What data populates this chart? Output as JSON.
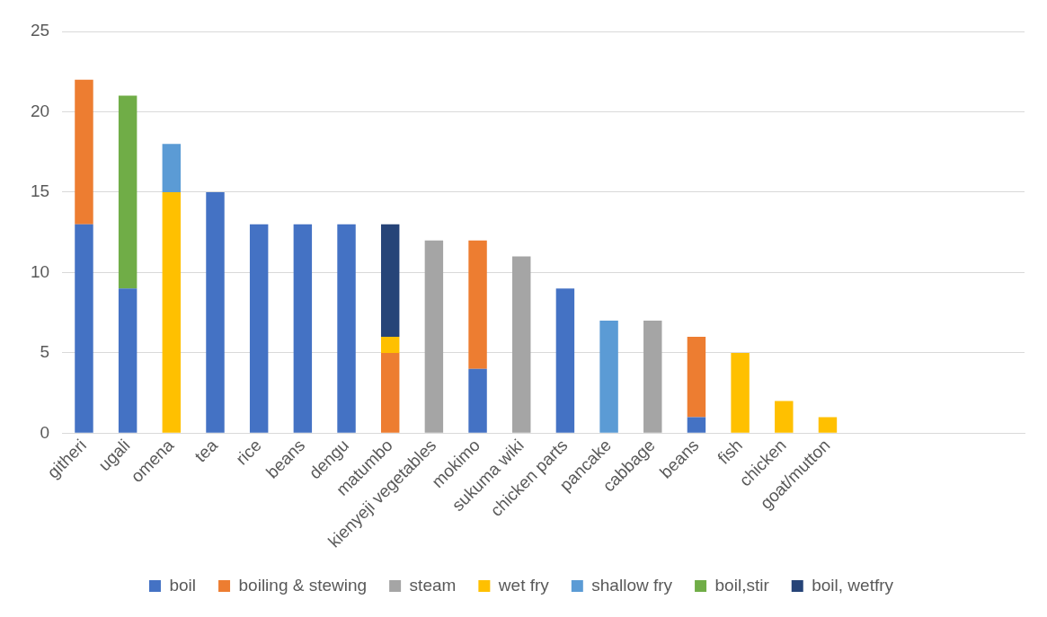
{
  "chart_data": {
    "type": "bar",
    "stacked": true,
    "grid": "y",
    "legend": "bottom",
    "categories": [
      "githeri",
      "ugali",
      "omena",
      "tea",
      "rice",
      "beans",
      "dengu",
      "matumbo",
      "kienyeji vegetables",
      "mokimo",
      "sukuma wiki",
      "chicken parts",
      "pancake",
      "cabbage",
      "beans",
      "fish",
      "chicken",
      "goat/mutton",
      null,
      null,
      null,
      null
    ],
    "ylim": [
      0,
      25
    ],
    "yticks": [
      0,
      5,
      10,
      15,
      20,
      25
    ],
    "series": [
      {
        "name": "boil",
        "color": "#4472c4",
        "values": [
          13,
          9,
          null,
          15,
          13,
          13,
          13,
          null,
          null,
          4,
          null,
          9,
          null,
          null,
          1,
          null,
          null,
          null,
          null,
          null,
          null,
          null
        ]
      },
      {
        "name": "boiling & stewing",
        "color": "#ed7d31",
        "values": [
          9,
          null,
          null,
          null,
          null,
          null,
          null,
          5,
          null,
          8,
          null,
          null,
          null,
          null,
          5,
          null,
          null,
          null,
          null,
          null,
          null,
          null
        ]
      },
      {
        "name": "steam",
        "color": "#a5a5a5",
        "values": [
          null,
          null,
          null,
          null,
          null,
          null,
          null,
          null,
          12,
          null,
          11,
          null,
          null,
          7,
          null,
          null,
          null,
          null,
          null,
          null,
          null,
          null
        ]
      },
      {
        "name": "wet fry",
        "color": "#ffc000",
        "values": [
          null,
          null,
          15,
          null,
          null,
          null,
          null,
          1,
          null,
          null,
          null,
          null,
          null,
          null,
          null,
          5,
          2,
          1,
          null,
          null,
          null,
          null
        ]
      },
      {
        "name": "shallow fry",
        "color": "#5b9bd5",
        "values": [
          null,
          null,
          3,
          null,
          null,
          null,
          null,
          null,
          null,
          null,
          null,
          null,
          7,
          null,
          null,
          null,
          null,
          null,
          null,
          null,
          null,
          null
        ]
      },
      {
        "name": "boil,stir",
        "color": "#70ad47",
        "values": [
          null,
          12,
          null,
          null,
          null,
          null,
          null,
          null,
          null,
          null,
          null,
          null,
          null,
          null,
          null,
          null,
          null,
          null,
          null,
          null,
          null,
          null
        ]
      },
      {
        "name": "boil, wetfry",
        "color": "#264478",
        "values": [
          null,
          null,
          null,
          null,
          null,
          null,
          null,
          7,
          null,
          null,
          null,
          null,
          null,
          null,
          null,
          null,
          null,
          null,
          null,
          null,
          null,
          null
        ]
      }
    ]
  }
}
